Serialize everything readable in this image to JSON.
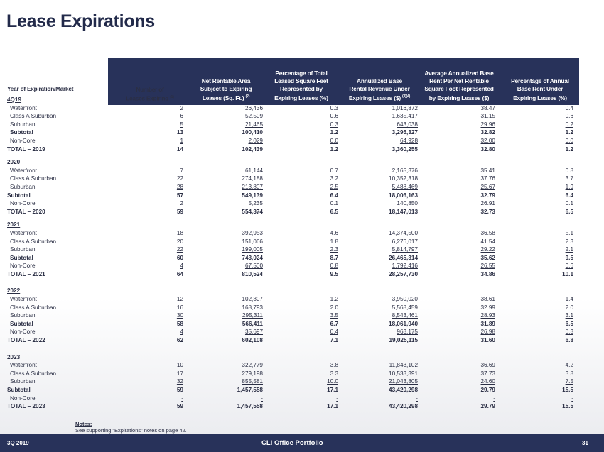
{
  "title": "Lease Expirations",
  "header": {
    "year_col": "Year of Expiration/Market",
    "columns": [
      {
        "l1": "",
        "l2": "Number of",
        "l3": "Leases Expiring",
        "sup": "(1)"
      },
      {
        "l1": "Net Rentable Area",
        "l2": "Subject to Expiring",
        "l3": "Leases (Sq. Ft.)",
        "sup": "(2)"
      },
      {
        "l0": "Percentage of Total",
        "l1": "Leased Square Feet",
        "l2": "Represented by",
        "l3": "Expiring Leases (%)",
        "sup": ""
      },
      {
        "l1": "Annualized Base",
        "l2": "Rental Revenue Under",
        "l3": "Expiring Leases ($)",
        "sup": "(3)(4)"
      },
      {
        "l0": "Average Annualized Base",
        "l1": "Rent Per Net Rentable",
        "l2": "Square Foot Represented",
        "l3": "by Expiring Leases ($)",
        "sup": ""
      },
      {
        "l1": "Percentage of Annual",
        "l2": "Base Rent Under",
        "l3": "Expiring Leases (%)",
        "sup": ""
      }
    ]
  },
  "groups": [
    {
      "year": "4Q19",
      "rows": [
        {
          "label": "Waterfront",
          "style": "",
          "values": [
            "2",
            "26,436",
            "0.3",
            "1,016,872",
            "38.47",
            "0.4"
          ]
        },
        {
          "label": "Class A Suburban",
          "style": "",
          "values": [
            "6",
            "52,509",
            "0.6",
            "1,635,417",
            "31.15",
            "0.6"
          ]
        },
        {
          "label": "Suburban",
          "style": "u",
          "values": [
            "5",
            "21,465",
            "0.3",
            "643,038",
            "29.96",
            "0.2"
          ]
        },
        {
          "label": "Subtotal",
          "style": "b",
          "values": [
            "13",
            "100,410",
            "1.2",
            "3,295,327",
            "32.82",
            "1.2"
          ]
        },
        {
          "label": "Non-Core",
          "style": "u",
          "values": [
            "1",
            "2,029",
            "0.0",
            "64,928",
            "32.00",
            "0.0"
          ]
        },
        {
          "label": "TOTAL – 2019",
          "style": "b total",
          "values": [
            "14",
            "102,439",
            "1.2",
            "3,360,255",
            "32.80",
            "1.2"
          ]
        }
      ]
    },
    {
      "year": "2020",
      "rows": [
        {
          "label": "Waterfront",
          "style": "",
          "values": [
            "7",
            "61,144",
            "0.7",
            "2,165,376",
            "35.41",
            "0.8"
          ]
        },
        {
          "label": "Class A Suburban",
          "style": "",
          "values": [
            "22",
            "274,188",
            "3.2",
            "10,352,318",
            "37.76",
            "3.7"
          ]
        },
        {
          "label": "Suburban",
          "style": "u",
          "values": [
            "28",
            "213,807",
            "2.5",
            "5,488,469",
            "25.67",
            "1.9"
          ]
        },
        {
          "label": "Subtotal",
          "style": "b total",
          "values": [
            "57",
            "549,139",
            "6.4",
            "18,006,163",
            "32.79",
            "6.4"
          ]
        },
        {
          "label": "Non-Core",
          "style": "u",
          "values": [
            "2",
            "5,235",
            "0.1",
            "140,850",
            "26.91",
            "0.1"
          ]
        },
        {
          "label": "TOTAL – 2020",
          "style": "b total",
          "values": [
            "59",
            "554,374",
            "6.5",
            "18,147,013",
            "32.73",
            "6.5"
          ]
        }
      ]
    },
    {
      "year": "2021",
      "rows": [
        {
          "label": "Waterfront",
          "style": "",
          "values": [
            "18",
            "392,953",
            "4.6",
            "14,374,500",
            "36.58",
            "5.1"
          ]
        },
        {
          "label": "Class A Suburban",
          "style": "",
          "values": [
            "20",
            "151,066",
            "1.8",
            "6,276,017",
            "41.54",
            "2.3"
          ]
        },
        {
          "label": "Suburban",
          "style": "u",
          "values": [
            "22",
            "199,005",
            "2.3",
            "5,814,797",
            "29.22",
            "2.1"
          ]
        },
        {
          "label": "Subtotal",
          "style": "b",
          "values": [
            "60",
            "743,024",
            "8.7",
            "26,465,314",
            "35.62",
            "9.5"
          ]
        },
        {
          "label": "Non-Core",
          "style": "u",
          "values": [
            "4",
            "67,500",
            "0.8",
            "1,792,416",
            "26.55",
            "0.6"
          ]
        },
        {
          "label": "TOTAL – 2021",
          "style": "b total",
          "values": [
            "64",
            "810,524",
            "9.5",
            "28,257,730",
            "34.86",
            "10.1"
          ]
        }
      ]
    },
    {
      "year": "2022",
      "rows": [
        {
          "label": "Waterfront",
          "style": "",
          "values": [
            "12",
            "102,307",
            "1.2",
            "3,950,020",
            "38.61",
            "1.4"
          ]
        },
        {
          "label": "Class A Suburban",
          "style": "",
          "values": [
            "16",
            "168,793",
            "2.0",
            "5,568,459",
            "32.99",
            "2.0"
          ]
        },
        {
          "label": "Suburban",
          "style": "u",
          "values": [
            "30",
            "295,311",
            "3.5",
            "8,543,461",
            "28.93",
            "3.1"
          ]
        },
        {
          "label": "Subtotal",
          "style": "b",
          "values": [
            "58",
            "566,411",
            "6.7",
            "18,061,940",
            "31.89",
            "6.5"
          ]
        },
        {
          "label": "Non-Core",
          "style": "u",
          "values": [
            "4",
            "35,697",
            "0.4",
            "963,175",
            "26.98",
            "0.3"
          ]
        },
        {
          "label": "TOTAL – 2022",
          "style": "b total",
          "values": [
            "62",
            "602,108",
            "7.1",
            "19,025,115",
            "31.60",
            "6.8"
          ]
        }
      ]
    },
    {
      "year": "2023",
      "rows": [
        {
          "label": "Waterfront",
          "style": "",
          "values": [
            "10",
            "322,779",
            "3.8",
            "11,843,102",
            "36.69",
            "4.2"
          ]
        },
        {
          "label": "Class A Suburban",
          "style": "",
          "values": [
            "17",
            "279,198",
            "3.3",
            "10,533,391",
            "37.73",
            "3.8"
          ]
        },
        {
          "label": "Suburban",
          "style": "u",
          "values": [
            "32",
            "855,581",
            "10.0",
            "21,043,805",
            "24.60",
            "7.5"
          ]
        },
        {
          "label": "Subtotal",
          "style": "b total",
          "values": [
            "59",
            "1,457,558",
            "17.1",
            "43,420,298",
            "29.79",
            "15.5"
          ]
        },
        {
          "label": "Non-Core",
          "style": "u",
          "values": [
            "-",
            "-",
            "-",
            "-",
            "-",
            "-"
          ]
        },
        {
          "label": "TOTAL – 2023",
          "style": "b total",
          "values": [
            "59",
            "1,457,558",
            "17.1",
            "43,420,298",
            "29.79",
            "15.5"
          ]
        }
      ]
    }
  ],
  "notes": {
    "heading": "Notes:",
    "text": "See supporting “Expirations” notes on page 42."
  },
  "footer": {
    "left": "3Q 2019",
    "center": "CLI Office Portfolio",
    "page": "31"
  }
}
